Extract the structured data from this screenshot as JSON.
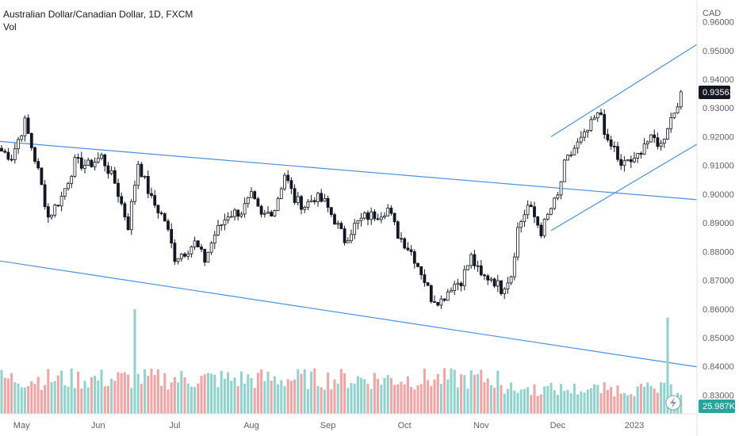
{
  "legend": {
    "symbol_title": "Australian Dollar/Canadian Dollar, 1D, FXCM",
    "volume_label": "Vol"
  },
  "currency_label": "CAD",
  "current_price_label": "0.93563",
  "current_volume_label": "25.987K",
  "colors": {
    "up": "#26a69a",
    "down": "#ef5350",
    "vol_up": "#8fd3cd",
    "vol_down": "#f5a3a2",
    "trend": "#4a90e2"
  },
  "icons": {
    "replay": "lightning-bolt-icon"
  },
  "chart_data": {
    "type": "candlestick",
    "title": "Australian Dollar/Canadian Dollar, 1D, FXCM",
    "ylim": [
      0.8235,
      0.9676
    ],
    "y_ticks": [
      "0.96000",
      "0.95000",
      "0.94000",
      "0.93000",
      "0.92000",
      "0.91000",
      "0.90000",
      "0.89000",
      "0.88000",
      "0.87000",
      "0.86000",
      "0.85000",
      "0.84000",
      "0.83000"
    ],
    "x_ticks": [
      "May",
      "Jun",
      "Jul",
      "Aug",
      "Sep",
      "Oct",
      "Nov",
      "Dec",
      "2023"
    ],
    "x_tick_index": [
      6,
      29,
      52,
      75,
      98,
      121,
      144,
      167,
      190
    ],
    "bars_count": 205,
    "anchors": [
      [
        0,
        0.915
      ],
      [
        3,
        0.913
      ],
      [
        7,
        0.925
      ],
      [
        11,
        0.908
      ],
      [
        14,
        0.892
      ],
      [
        18,
        0.899
      ],
      [
        22,
        0.911
      ],
      [
        26,
        0.91
      ],
      [
        30,
        0.913
      ],
      [
        34,
        0.904
      ],
      [
        38,
        0.889
      ],
      [
        41,
        0.911
      ],
      [
        45,
        0.898
      ],
      [
        49,
        0.891
      ],
      [
        52,
        0.878
      ],
      [
        55,
        0.88
      ],
      [
        58,
        0.883
      ],
      [
        61,
        0.877
      ],
      [
        64,
        0.886
      ],
      [
        68,
        0.893
      ],
      [
        72,
        0.894
      ],
      [
        75,
        0.899
      ],
      [
        78,
        0.892
      ],
      [
        82,
        0.895
      ],
      [
        85,
        0.907
      ],
      [
        88,
        0.898
      ],
      [
        91,
        0.896
      ],
      [
        94,
        0.899
      ],
      [
        97,
        0.897
      ],
      [
        100,
        0.891
      ],
      [
        103,
        0.884
      ],
      [
        106,
        0.889
      ],
      [
        109,
        0.892
      ],
      [
        113,
        0.893
      ],
      [
        116,
        0.895
      ],
      [
        119,
        0.886
      ],
      [
        123,
        0.88
      ],
      [
        126,
        0.873
      ],
      [
        129,
        0.864
      ],
      [
        132,
        0.863
      ],
      [
        135,
        0.868
      ],
      [
        138,
        0.87
      ],
      [
        141,
        0.878
      ],
      [
        144,
        0.871
      ],
      [
        147,
        0.871
      ],
      [
        150,
        0.867
      ],
      [
        153,
        0.872
      ],
      [
        155,
        0.888
      ],
      [
        158,
        0.896
      ],
      [
        160,
        0.892
      ],
      [
        162,
        0.887
      ],
      [
        165,
        0.895
      ],
      [
        167,
        0.899
      ],
      [
        169,
        0.91
      ],
      [
        172,
        0.916
      ],
      [
        175,
        0.92
      ],
      [
        178,
        0.926
      ],
      [
        180,
        0.928
      ],
      [
        182,
        0.917
      ],
      [
        184,
        0.916
      ],
      [
        186,
        0.909
      ],
      [
        188,
        0.912
      ],
      [
        190,
        0.911
      ],
      [
        193,
        0.918
      ],
      [
        196,
        0.919
      ],
      [
        198,
        0.917
      ],
      [
        200,
        0.924
      ],
      [
        202,
        0.929
      ],
      [
        204,
        0.9356
      ]
    ],
    "volume": {
      "last": "25.987K",
      "spikes": [
        {
          "index": 40,
          "height_ratio": 1.0
        },
        {
          "index": 200,
          "height_ratio": 0.92
        }
      ]
    },
    "trend_lines": [
      {
        "from": [
          -2,
          0.9185
        ],
        "to": [
          225,
          0.8965
        ]
      },
      {
        "from": [
          -2,
          0.877
        ],
        "to": [
          225,
          0.837
        ]
      },
      {
        "from": [
          165,
          0.92
        ],
        "to": [
          225,
          0.964
        ]
      },
      {
        "from": [
          165,
          0.8873
        ],
        "to": [
          225,
          0.9285
        ]
      }
    ]
  }
}
